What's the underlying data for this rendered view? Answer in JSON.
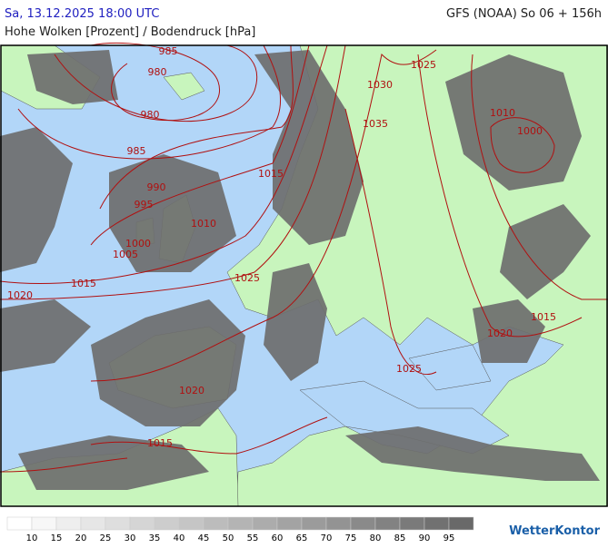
{
  "header": {
    "datetime": "Sa, 13.12.2025 18:00 UTC",
    "model": "GFS (NOAA) So 06 + 156h",
    "subtitle": "Hohe Wolken [Prozent] / Bodendruck [hPa]"
  },
  "isobar_labels": [
    "985",
    "980",
    "980",
    "985",
    "990",
    "995",
    "1000",
    "1005",
    "1010",
    "1015",
    "1015",
    "1020",
    "1025",
    "1030",
    "1025",
    "1035",
    "1010",
    "1000",
    "1020",
    "1015",
    "1025",
    "1020",
    "1015"
  ],
  "legend": {
    "values": [
      10,
      15,
      20,
      25,
      30,
      35,
      40,
      45,
      50,
      55,
      60,
      65,
      70,
      75,
      80,
      85,
      90,
      95
    ]
  },
  "logo": "WetterKontor"
}
